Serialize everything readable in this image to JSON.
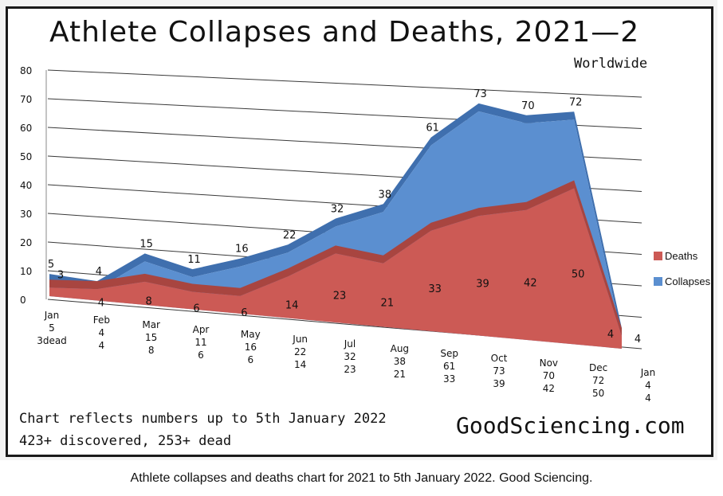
{
  "title": "Athlete Collapses and Deaths, 2021—2",
  "subtitle": "Worldwide",
  "note_line1": "Chart reflects numbers up to 5th January 2022",
  "note_line2": "423+ discovered, 253+ dead",
  "brand": "GoodSciencing.com",
  "caption": "Athlete collapses and deaths chart for 2021 to 5th January 2022. Good Sciencing.",
  "colors": {
    "collapses": "#5b8fd0",
    "collapses_dark": "#3f6fae",
    "deaths": "#cc5a55",
    "deaths_dark": "#a84540"
  },
  "chart_data": {
    "type": "area",
    "title": "Athlete Collapses and Deaths, 2021—2",
    "subtitle": "Worldwide",
    "ylim": [
      0,
      80
    ],
    "y_ticks": [
      "0",
      "10",
      "20",
      "30",
      "40",
      "50",
      "60",
      "70",
      "80"
    ],
    "grid": true,
    "legend_position": "right",
    "categories": [
      "Jan",
      "Feb",
      "Mar",
      "Apr",
      "May",
      "Jun",
      "Jul",
      "Aug",
      "Sep",
      "Oct",
      "Nov",
      "Dec",
      "Jan"
    ],
    "category_sublabels": [
      [
        "5",
        "3dead"
      ],
      [
        "4",
        "4"
      ],
      [
        "15",
        "8"
      ],
      [
        "11",
        "6"
      ],
      [
        "16",
        "6"
      ],
      [
        "22",
        "14"
      ],
      [
        "32",
        "23"
      ],
      [
        "38",
        "21"
      ],
      [
        "61",
        "33"
      ],
      [
        "73",
        "39"
      ],
      [
        "70",
        "42"
      ],
      [
        "72",
        "50"
      ],
      [
        "4",
        "4"
      ]
    ],
    "series": [
      {
        "name": "Deaths",
        "values": [
          3,
          4,
          8,
          6,
          6,
          14,
          23,
          21,
          33,
          39,
          42,
          50,
          4
        ]
      },
      {
        "name": "Collapses",
        "values": [
          5,
          4,
          15,
          11,
          16,
          22,
          32,
          38,
          61,
          73,
          70,
          72,
          4
        ]
      }
    ]
  }
}
